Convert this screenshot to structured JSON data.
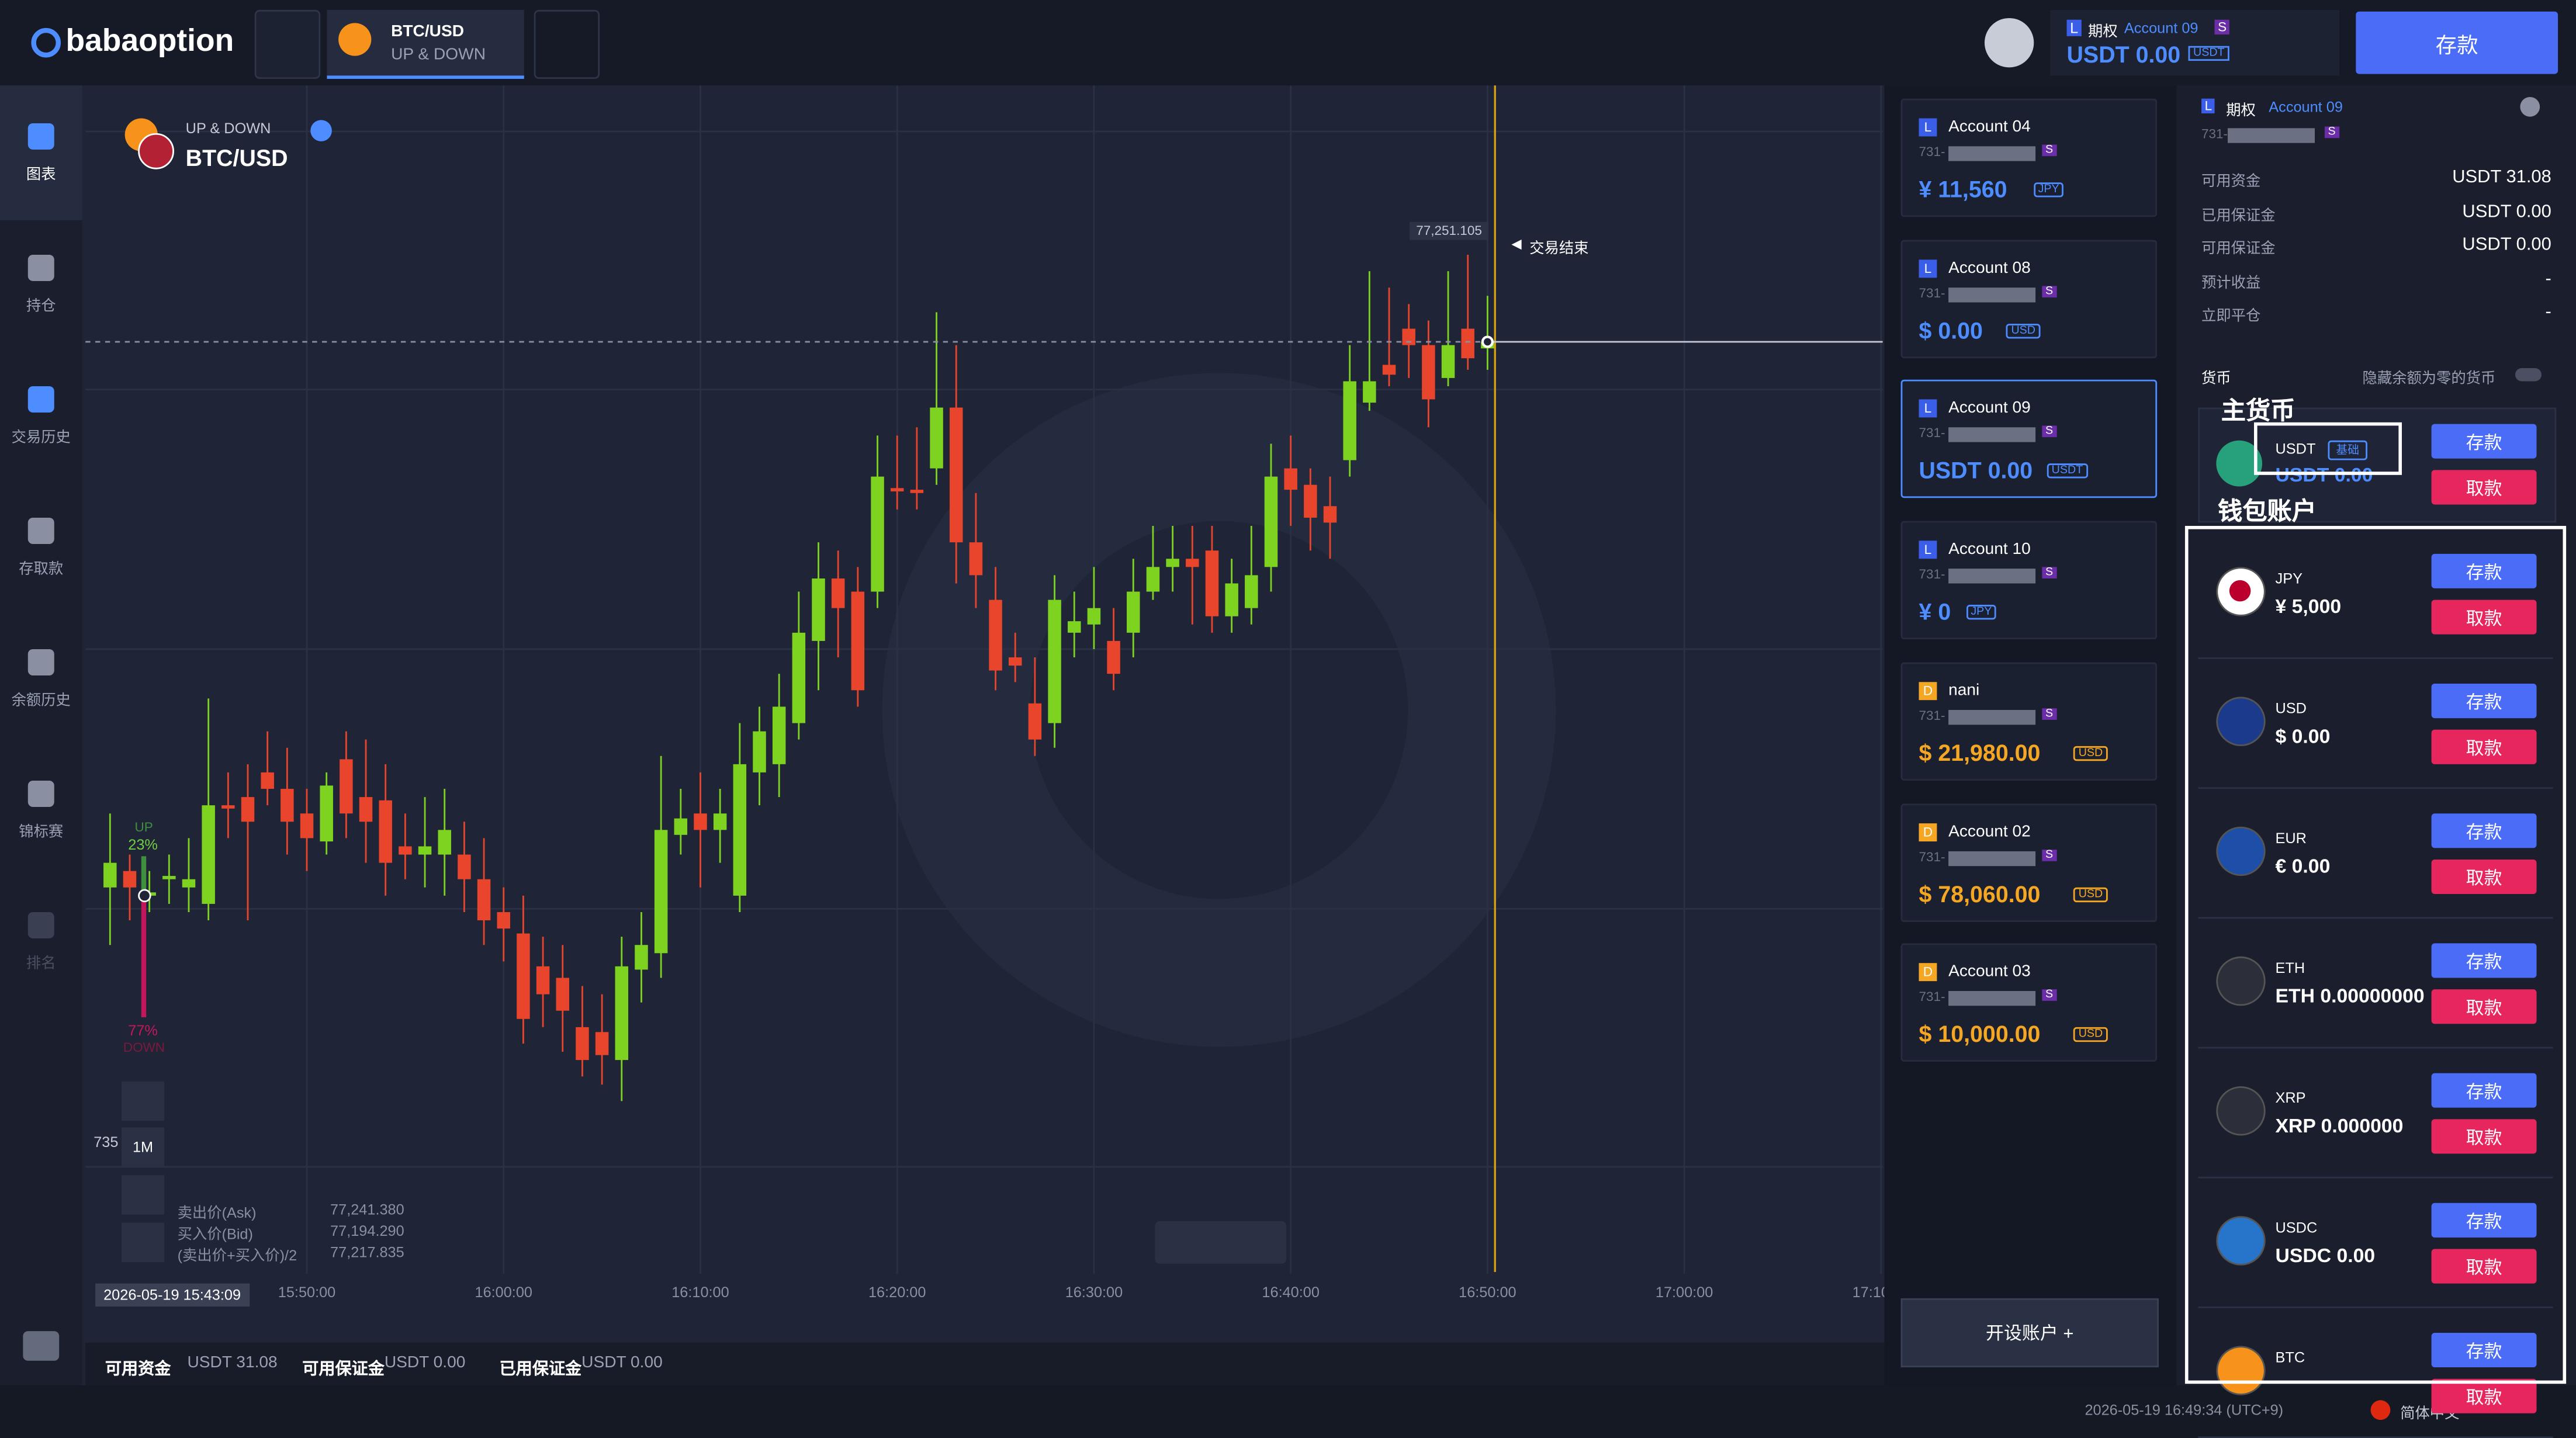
{
  "header": {
    "logo": "babaoption",
    "tab_pair": "BTC/USD",
    "tab_mode": "UP & DOWN",
    "account_type": "期权",
    "account_badge": "L",
    "account_name": "Account 09",
    "account_tag": "S",
    "balance": "USDT 0.00",
    "balance_currency": "USDT",
    "deposit": "存款"
  },
  "sidebar": [
    "图表",
    "持仓",
    "交易历史",
    "存取款",
    "余额历史",
    "锦标赛",
    "排名"
  ],
  "chart_info": {
    "mode": "UP & DOWN",
    "pair": "BTC/USD",
    "price_tag": "77,251.105",
    "end_label": "交易结束",
    "up": "UP",
    "up_pct": "23%",
    "down_pct": "77%",
    "down": "DOWN",
    "left_price": "735",
    "interval": "1M",
    "ask_label": "卖出价(Ask)",
    "ask": "77,241.380",
    "bid_label": "买入价(Bid)",
    "bid": "77,194.290",
    "mid_label": "(卖出价+买入价)/2",
    "mid": "77,217.835",
    "cursor_time": "2026-05-19 15:43:09"
  },
  "chart_data": {
    "type": "candlestick",
    "x": [
      "15:40",
      "15:41",
      "15:42",
      "15:43",
      "15:44",
      "15:45",
      "15:46",
      "15:47",
      "15:48",
      "15:49",
      "15:50",
      "15:51",
      "15:52",
      "15:53",
      "15:54",
      "15:55",
      "15:56",
      "15:57",
      "15:58",
      "15:59",
      "16:00",
      "16:01",
      "16:02",
      "16:03",
      "16:04",
      "16:05",
      "16:06",
      "16:07",
      "16:08",
      "16:09",
      "16:10",
      "16:11",
      "16:12",
      "16:13",
      "16:14",
      "16:15",
      "16:16",
      "16:17",
      "16:18",
      "16:19",
      "16:20",
      "16:21",
      "16:22",
      "16:23",
      "16:24",
      "16:25",
      "16:26",
      "16:27",
      "16:28",
      "16:29",
      "16:30",
      "16:31",
      "16:32",
      "16:33",
      "16:34",
      "16:35",
      "16:36",
      "16:37",
      "16:38",
      "16:39",
      "16:40",
      "16:41",
      "16:42",
      "16:43",
      "16:44",
      "16:45",
      "16:46",
      "16:47",
      "16:48",
      "16:49",
      "16:50"
    ],
    "open": [
      76919,
      76929,
      76914,
      76924,
      76919,
      76909,
      76969,
      76974,
      76989,
      76979,
      76964,
      76947,
      76997,
      76974,
      76972,
      76944,
      76939,
      76939,
      76939,
      76924,
      76904,
      76891,
      76871,
      76864,
      76834,
      76831,
      76814,
      76869,
      76879,
      76951,
      76964,
      76954,
      76914,
      76989,
      76994,
      77019,
      77069,
      77107,
      77099,
      77099,
      77162,
      77161,
      77174,
      77211,
      77129,
      77094,
      77059,
      77031,
      77019,
      77074,
      77079,
      77069,
      77074,
      77099,
      77114,
      77119,
      77124,
      77084,
      77089,
      77114,
      77174,
      77164,
      77151,
      77179,
      77214,
      77237,
      77259,
      77249,
      77229,
      77259,
      77247
    ],
    "high": [
      76964,
      76939,
      76929,
      76939,
      76949,
      77034,
      76989,
      76994,
      77014,
      77004,
      76979,
      76989,
      77014,
      77009,
      76994,
      76964,
      76974,
      76979,
      76959,
      76949,
      76919,
      76914,
      76889,
      76884,
      76859,
      76854,
      76889,
      76904,
      76999,
      76979,
      76989,
      76979,
      77019,
      77029,
      77049,
      77099,
      77129,
      77124,
      77114,
      77194,
      77194,
      77199,
      77269,
      77249,
      77159,
      77114,
      77074,
      77059,
      77109,
      77099,
      77114,
      77089,
      77119,
      77139,
      77139,
      77139,
      77139,
      77119,
      77139,
      77189,
      77194,
      77174,
      77169,
      77249,
      77294,
      77284,
      77274,
      77264,
      77294,
      77304,
      77279
    ],
    "low": [
      76884,
      76899,
      76904,
      76909,
      76904,
      76899,
      76949,
      76899,
      76969,
      76939,
      76929,
      76939,
      76949,
      76934,
      76914,
      76924,
      76919,
      76914,
      76904,
      76884,
      76874,
      76824,
      76834,
      76819,
      76804,
      76799,
      76789,
      76849,
      76864,
      76939,
      76919,
      76934,
      76904,
      76969,
      76974,
      77009,
      77039,
      77059,
      77029,
      77089,
      77149,
      77149,
      77164,
      77104,
      77089,
      77039,
      77044,
      76999,
      77004,
      77059,
      77064,
      77039,
      77059,
      77094,
      77099,
      77079,
      77074,
      77074,
      77079,
      77099,
      77139,
      77124,
      77119,
      77169,
      77209,
      77224,
      77229,
      77199,
      77224,
      77234,
      77234
    ],
    "close": [
      76934,
      76919,
      76916,
      76926,
      76924,
      76969,
      76967,
      76959,
      76979,
      76959,
      76949,
      76981,
      76964,
      76959,
      76934,
      76939,
      76944,
      76954,
      76924,
      76899,
      76894,
      76839,
      76854,
      76844,
      76814,
      76817,
      76871,
      76884,
      76954,
      76961,
      76954,
      76964,
      76994,
      77014,
      77029,
      77074,
      77107,
      77089,
      77039,
      77169,
      77160,
      77159,
      77211,
      77129,
      77109,
      77051,
      77054,
      77009,
      77094,
      77081,
      77089,
      77049,
      77099,
      77114,
      77119,
      77114,
      77084,
      77104,
      77109,
      77169,
      77161,
      77144,
      77141,
      77227,
      77227,
      77231,
      77249,
      77216,
      77249,
      77241,
      77251
    ],
    "xlim": [
      "15:39:10",
      "17:10:00"
    ],
    "xticks": [
      "15:50:00",
      "16:00:00",
      "16:10:00",
      "16:20:00",
      "16:30:00",
      "16:40:00",
      "16:50:00",
      "17:00:00",
      "17:10:00"
    ],
    "ylim": [
      76684,
      77404
    ],
    "up_color": "#7ed321",
    "down_color": "#e8452c",
    "grid": true
  },
  "status_bar": [
    [
      "可用资金",
      "USDT 31.08"
    ],
    [
      "可用保证金",
      "USDT 0.00"
    ],
    [
      "已用保证金",
      "USDT 0.00"
    ]
  ],
  "accounts": [
    {
      "badge": "L",
      "name": "Account 04",
      "id": "731-",
      "tag": "S",
      "balance": "¥ 11,560",
      "currency": "JPY"
    },
    {
      "badge": "L",
      "name": "Account 08",
      "id": "731-",
      "tag": "S",
      "balance": "$ 0.00",
      "currency": "USD"
    },
    {
      "badge": "L",
      "name": "Account 09",
      "id": "731-",
      "tag": "S",
      "balance": "USDT 0.00",
      "currency": "USDT"
    },
    {
      "badge": "L",
      "name": "Account 10",
      "id": "731-",
      "tag": "S",
      "balance": "¥ 0",
      "currency": "JPY"
    },
    {
      "badge": "D",
      "name": "nani",
      "id": "731-",
      "tag": "S",
      "balance": "$ 21,980.00",
      "currency": "USD"
    },
    {
      "badge": "D",
      "name": "Account 02",
      "id": "731-",
      "tag": "S",
      "balance": "$ 78,060.00",
      "currency": "USD"
    },
    {
      "badge": "D",
      "name": "Account 03",
      "id": "731-",
      "tag": "S",
      "balance": "$ 10,000.00",
      "currency": "USD"
    }
  ],
  "open_account": "开设账户 +",
  "wallet": {
    "badge": "L",
    "type": "期权",
    "name": "Account 09",
    "id": "731-",
    "tag": "S",
    "stats": [
      [
        "可用资金",
        "USDT 31.08"
      ],
      [
        "已用保证金",
        "USDT 0.00"
      ],
      [
        "可用保证金",
        "USDT 0.00"
      ],
      [
        "预计收益",
        "-"
      ],
      [
        "立即平仓",
        "-"
      ]
    ],
    "currency_label": "货币",
    "hide_zero": "隐藏余额为零的货币",
    "main_label": "主货币",
    "wallet_label": "钱包账户",
    "main": {
      "code": "USDT",
      "tag": "基础",
      "balance": "USDT 0.00"
    },
    "coins": [
      {
        "code": "JPY",
        "balance": "¥ 5,000"
      },
      {
        "code": "USD",
        "balance": "$ 0.00"
      },
      {
        "code": "EUR",
        "balance": "€ 0.00"
      },
      {
        "code": "ETH",
        "balance": "ETH 0.00000000"
      },
      {
        "code": "XRP",
        "balance": "XRP 0.000000"
      },
      {
        "code": "USDC",
        "balance": "USDC 0.00"
      },
      {
        "code": "BTC",
        "balance": ""
      }
    ],
    "deposit": "存款",
    "withdraw": "取款"
  },
  "footer": {
    "time": "2026-05-19 16:49:34 (UTC+9)",
    "language": "简体中文"
  }
}
